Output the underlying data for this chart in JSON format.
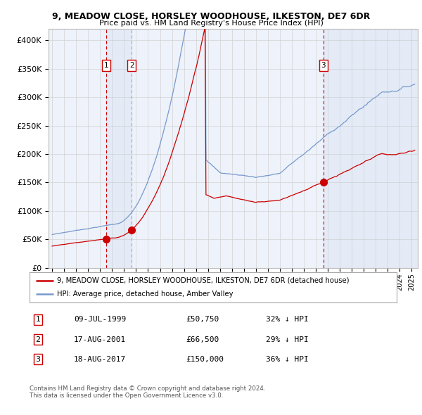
{
  "title": "9, MEADOW CLOSE, HORSLEY WOODHOUSE, ILKESTON, DE7 6DR",
  "subtitle": "Price paid vs. HM Land Registry's House Price Index (HPI)",
  "ylim": [
    0,
    420000
  ],
  "yticks": [
    0,
    50000,
    100000,
    150000,
    200000,
    250000,
    300000,
    350000,
    400000
  ],
  "ytick_labels": [
    "£0",
    "£50K",
    "£100K",
    "£150K",
    "£200K",
    "£250K",
    "£300K",
    "£350K",
    "£400K"
  ],
  "xlim_start": 1994.7,
  "xlim_end": 2025.5,
  "hpi_color": "#7799cc",
  "price_color": "#cc0000",
  "bg_color": "#eef2fa",
  "grid_color": "#cccccc",
  "sale1_date": 1999.52,
  "sale1_price": 50750,
  "sale1_hpi": 74500,
  "sale2_date": 2001.63,
  "sale2_price": 66500,
  "sale2_hpi": 93000,
  "sale3_date": 2017.63,
  "sale3_price": 150000,
  "sale3_hpi": 234000,
  "legend_line1": "9, MEADOW CLOSE, HORSLEY WOODHOUSE, ILKESTON, DE7 6DR (detached house)",
  "legend_line2": "HPI: Average price, detached house, Amber Valley",
  "table_entries": [
    {
      "num": "1",
      "date": "09-JUL-1999",
      "price": "£50,750",
      "change": "32% ↓ HPI"
    },
    {
      "num": "2",
      "date": "17-AUG-2001",
      "price": "£66,500",
      "change": "29% ↓ HPI"
    },
    {
      "num": "3",
      "date": "18-AUG-2017",
      "price": "£150,000",
      "change": "36% ↓ HPI"
    }
  ],
  "footnote": "Contains HM Land Registry data © Crown copyright and database right 2024.\nThis data is licensed under the Open Government Licence v3.0."
}
